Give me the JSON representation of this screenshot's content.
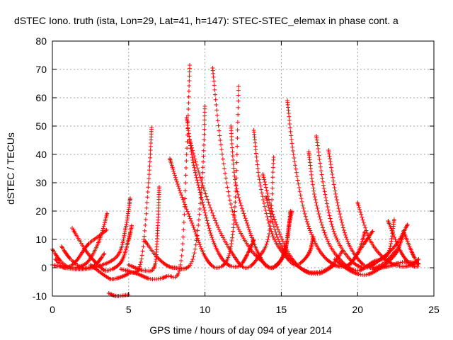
{
  "chart_data": {
    "type": "scatter",
    "title": "dSTEC Iono. truth (ista, Lon=29, Lat=41, h=147): STEC-STEC_elemax in phase cont. a",
    "xlabel": "GPS time / hours of day 094 of year 2014",
    "ylabel": "dSTEC  / TECUs",
    "xlim": [
      0,
      25
    ],
    "ylim": [
      -10,
      80
    ],
    "x_ticks": [
      "0",
      "5",
      "10",
      "15",
      "20",
      "25"
    ],
    "y_ticks": [
      "-10",
      "0",
      "10",
      "20",
      "30",
      "40",
      "50",
      "60",
      "70",
      "80"
    ],
    "grid": true,
    "marker": "+",
    "color": "#ff0000",
    "arcs": [
      [
        [
          0.0,
          6.5
        ],
        [
          0.6,
          2.0
        ],
        [
          1.3,
          0.0
        ],
        [
          2.3,
          2.0
        ],
        [
          3.1,
          10.0
        ],
        [
          3.6,
          19.5
        ]
      ],
      [
        [
          0.2,
          3.0
        ],
        [
          0.8,
          0.0
        ],
        [
          1.5,
          2.0
        ],
        [
          2.3,
          8.0
        ],
        [
          3.0,
          11.0
        ],
        [
          3.6,
          13.5
        ]
      ],
      [
        [
          0.6,
          7.5
        ],
        [
          1.2,
          3.0
        ],
        [
          2.0,
          0.0
        ],
        [
          2.8,
          1.0
        ],
        [
          3.4,
          5.0
        ]
      ],
      [
        [
          1.3,
          14.0
        ],
        [
          2.2,
          6.0
        ],
        [
          3.0,
          1.0
        ],
        [
          3.6,
          -1.0
        ],
        [
          4.5,
          2.0
        ],
        [
          5.0,
          10.0
        ],
        [
          5.2,
          15.0
        ]
      ],
      [
        [
          0.0,
          1.0
        ],
        [
          1.5,
          -0.5
        ],
        [
          3.0,
          0.5
        ],
        [
          4.3,
          4.5
        ],
        [
          4.8,
          14.0
        ],
        [
          5.1,
          24.5
        ]
      ],
      [
        [
          2.5,
          1.0
        ],
        [
          3.5,
          -3.0
        ],
        [
          4.0,
          -4.0
        ],
        [
          5.0,
          -2.0
        ],
        [
          5.8,
          2.0
        ],
        [
          6.3,
          30.0
        ],
        [
          6.5,
          49.5
        ]
      ],
      [
        [
          3.7,
          -9.0
        ],
        [
          4.2,
          -10.0
        ],
        [
          5.0,
          -9.5
        ]
      ],
      [
        [
          4.5,
          -0.5
        ],
        [
          5.5,
          -2.0
        ],
        [
          6.5,
          -4.0
        ],
        [
          7.5,
          -3.0
        ],
        [
          8.4,
          1.0
        ],
        [
          8.8,
          40.0
        ],
        [
          9.0,
          71.5
        ]
      ],
      [
        [
          5.0,
          1.0
        ],
        [
          6.0,
          -1.0
        ],
        [
          6.7,
          0.5
        ],
        [
          6.9,
          14.0
        ],
        [
          7.0,
          28.5
        ]
      ],
      [
        [
          6.0,
          10.0
        ],
        [
          7.0,
          3.0
        ],
        [
          8.0,
          0.0
        ],
        [
          9.2,
          3.0
        ],
        [
          9.8,
          30.0
        ],
        [
          10.0,
          57.0
        ]
      ],
      [
        [
          7.7,
          38.5
        ],
        [
          8.3,
          28.0
        ],
        [
          9.2,
          15.0
        ],
        [
          10.0,
          4.0
        ],
        [
          10.8,
          0.0
        ],
        [
          11.6,
          5.0
        ],
        [
          12.0,
          25.0
        ],
        [
          12.2,
          64.0
        ]
      ],
      [
        [
          8.8,
          53.0
        ],
        [
          9.2,
          38.0
        ],
        [
          9.8,
          24.0
        ],
        [
          10.5,
          10.0
        ],
        [
          11.3,
          2.0
        ],
        [
          12.2,
          0.5
        ],
        [
          12.8,
          5.0
        ],
        [
          13.2,
          10.0
        ]
      ],
      [
        [
          9.0,
          45.0
        ],
        [
          9.8,
          30.0
        ],
        [
          10.8,
          15.0
        ],
        [
          11.8,
          5.0
        ],
        [
          12.6,
          0.0
        ],
        [
          13.4,
          3.0
        ],
        [
          14.2,
          12.0
        ],
        [
          14.5,
          39.0
        ]
      ],
      [
        [
          10.5,
          70.5
        ],
        [
          11.0,
          45.0
        ],
        [
          11.8,
          20.0
        ],
        [
          12.8,
          8.0
        ],
        [
          13.8,
          2.0
        ],
        [
          14.5,
          0.0
        ],
        [
          15.2,
          5.0
        ],
        [
          15.5,
          15.0
        ],
        [
          15.7,
          20.0
        ]
      ],
      [
        [
          11.7,
          50.0
        ],
        [
          12.0,
          30.0
        ],
        [
          12.8,
          15.0
        ],
        [
          13.5,
          5.0
        ],
        [
          14.2,
          0.0
        ],
        [
          15.0,
          3.0
        ],
        [
          15.4,
          10.0
        ],
        [
          15.6,
          20.0
        ]
      ],
      [
        [
          13.2,
          48.5
        ],
        [
          13.6,
          30.0
        ],
        [
          14.4,
          12.0
        ],
        [
          15.3,
          4.0
        ],
        [
          16.0,
          1.0
        ],
        [
          16.8,
          5.0
        ],
        [
          17.1,
          11.0
        ]
      ],
      [
        [
          15.4,
          59.0
        ],
        [
          15.8,
          40.0
        ],
        [
          16.5,
          20.0
        ],
        [
          17.3,
          8.0
        ],
        [
          18.2,
          2.0
        ],
        [
          19.2,
          0.5
        ],
        [
          20.0,
          5.0
        ],
        [
          20.5,
          13.0
        ]
      ],
      [
        [
          13.8,
          33.0
        ],
        [
          14.5,
          18.0
        ],
        [
          15.5,
          5.0
        ],
        [
          16.5,
          -1.0
        ],
        [
          17.5,
          -2.0
        ],
        [
          18.5,
          1.0
        ]
      ],
      [
        [
          14.0,
          25.0
        ],
        [
          14.8,
          10.0
        ],
        [
          15.8,
          2.0
        ],
        [
          16.8,
          -1.5
        ],
        [
          17.8,
          -1.0
        ],
        [
          18.5,
          2.0
        ],
        [
          19.0,
          6.0
        ]
      ],
      [
        [
          16.8,
          41.0
        ],
        [
          17.2,
          25.0
        ],
        [
          18.0,
          10.0
        ],
        [
          19.0,
          2.0
        ],
        [
          20.0,
          -1.0
        ],
        [
          21.0,
          2.0
        ],
        [
          22.0,
          5.0
        ],
        [
          22.4,
          17.0
        ]
      ],
      [
        [
          17.3,
          46.5
        ],
        [
          17.8,
          28.0
        ],
        [
          18.5,
          12.0
        ],
        [
          19.5,
          3.0
        ],
        [
          20.5,
          0.0
        ],
        [
          21.5,
          3.0
        ],
        [
          22.5,
          8.0
        ],
        [
          23.3,
          15.5
        ]
      ],
      [
        [
          18.1,
          41.5
        ],
        [
          18.6,
          25.0
        ],
        [
          19.3,
          10.0
        ],
        [
          20.2,
          2.0
        ],
        [
          21.0,
          0.0
        ],
        [
          21.8,
          2.0
        ],
        [
          22.6,
          6.5
        ]
      ],
      [
        [
          18.5,
          3.0
        ],
        [
          19.5,
          -1.0
        ],
        [
          20.5,
          -2.5
        ],
        [
          21.5,
          0.0
        ],
        [
          22.5,
          5.0
        ],
        [
          23.0,
          12.0
        ]
      ],
      [
        [
          20.0,
          23.0
        ],
        [
          20.8,
          10.0
        ],
        [
          21.8,
          3.0
        ],
        [
          22.8,
          0.5
        ],
        [
          23.5,
          1.0
        ],
        [
          24.0,
          3.0
        ]
      ],
      [
        [
          19.5,
          1.0
        ],
        [
          20.5,
          9.0
        ],
        [
          21.0,
          13.0
        ]
      ],
      [
        [
          22.0,
          16.5
        ],
        [
          22.8,
          6.0
        ],
        [
          23.5,
          1.0
        ],
        [
          24.0,
          0.5
        ]
      ],
      [
        [
          23.0,
          13.0
        ],
        [
          23.6,
          5.0
        ],
        [
          24.0,
          1.0
        ]
      ],
      [
        [
          21.0,
          -0.5
        ],
        [
          22.0,
          0.5
        ],
        [
          23.0,
          2.0
        ],
        [
          24.0,
          1.5
        ]
      ]
    ]
  }
}
